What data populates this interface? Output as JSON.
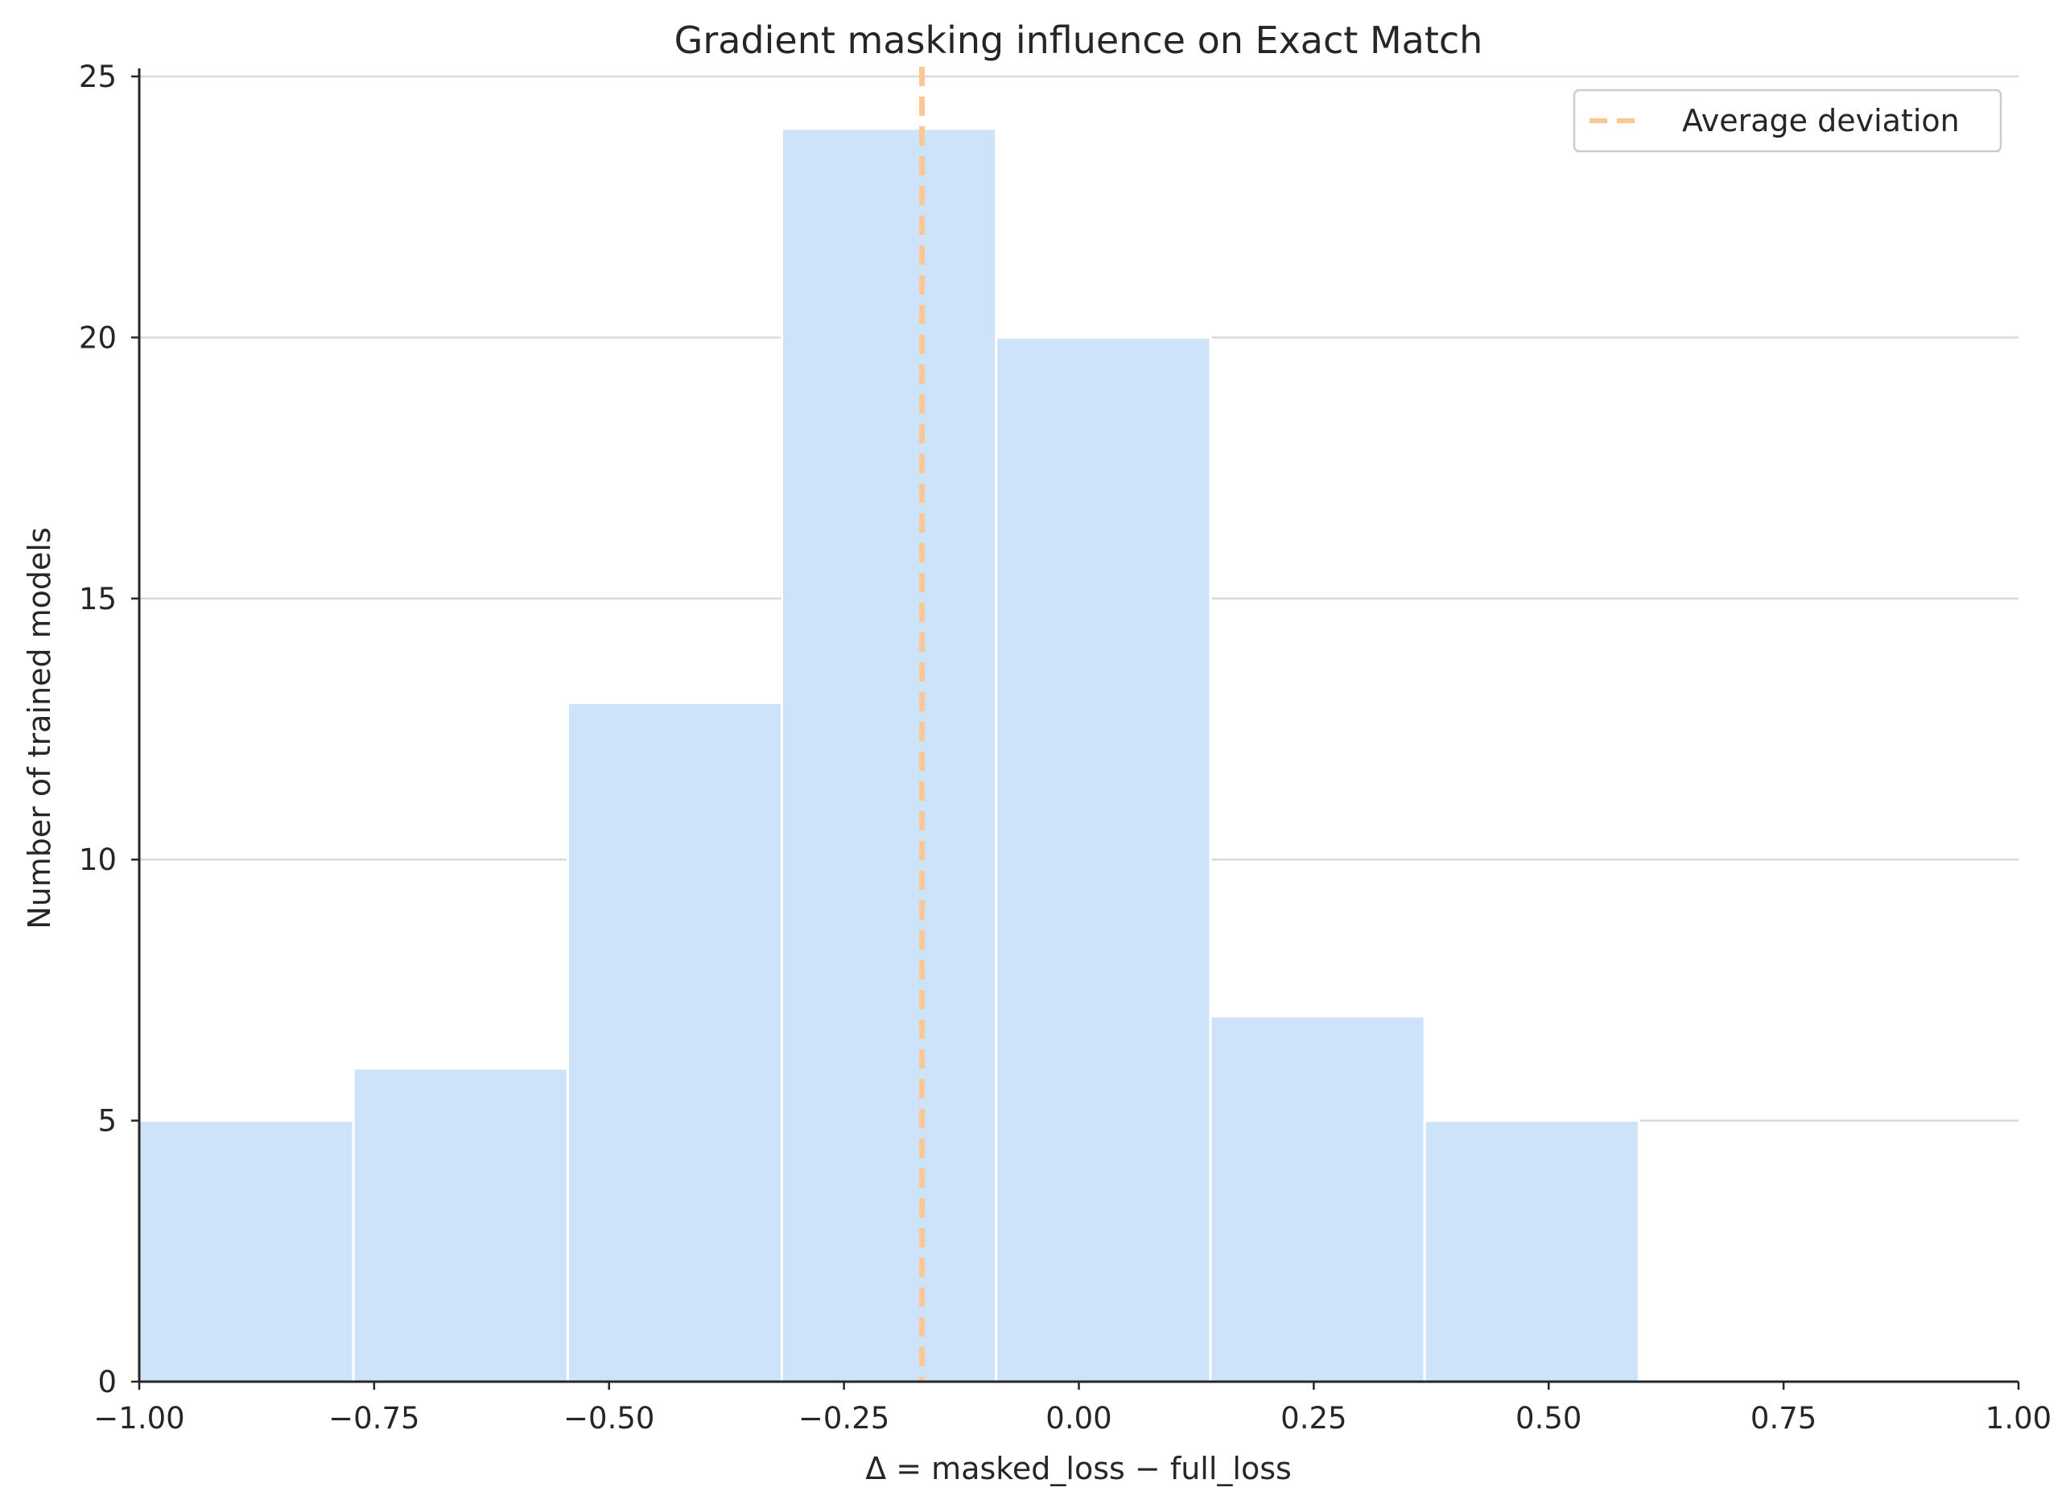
{
  "chart_data": {
    "type": "bar",
    "subtype": "histogram",
    "title": "Gradient masking influence on Exact Match",
    "xlabel": "Δ = masked_loss − full_loss",
    "ylabel": "Number of trained models",
    "xlim": [
      -1.0,
      1.0
    ],
    "ylim": [
      0,
      25
    ],
    "x_ticks": [
      -1.0,
      -0.75,
      -0.5,
      -0.25,
      0.0,
      0.25,
      0.5,
      0.75,
      1.0
    ],
    "x_tick_labels": [
      "−1.00",
      "−0.75",
      "−0.50",
      "−0.25",
      "0.00",
      "0.25",
      "0.50",
      "0.75",
      "1.00"
    ],
    "y_ticks": [
      0,
      5,
      10,
      15,
      20,
      25
    ],
    "y_tick_labels": [
      "0",
      "5",
      "10",
      "15",
      "20",
      "25"
    ],
    "bins": [
      {
        "start": -1.0,
        "end": -0.772,
        "count": 5
      },
      {
        "start": -0.772,
        "end": -0.544,
        "count": 6
      },
      {
        "start": -0.544,
        "end": -0.316,
        "count": 13
      },
      {
        "start": -0.316,
        "end": -0.088,
        "count": 24
      },
      {
        "start": -0.088,
        "end": 0.14,
        "count": 20
      },
      {
        "start": 0.14,
        "end": 0.368,
        "count": 7
      },
      {
        "start": 0.368,
        "end": 0.596,
        "count": 5
      }
    ],
    "reference_line": {
      "label": "Average deviation",
      "x": -0.167,
      "style": "dashed"
    },
    "legend": {
      "position": "top-right",
      "entries": [
        "Average deviation"
      ]
    },
    "grid": {
      "y": true,
      "x": false
    },
    "colors": {
      "bar": "#cde3f9",
      "bar_edge": "#ffffff",
      "reference_line": "#fbc794",
      "grid": "#d9d9d9",
      "axis": "#262626"
    }
  }
}
